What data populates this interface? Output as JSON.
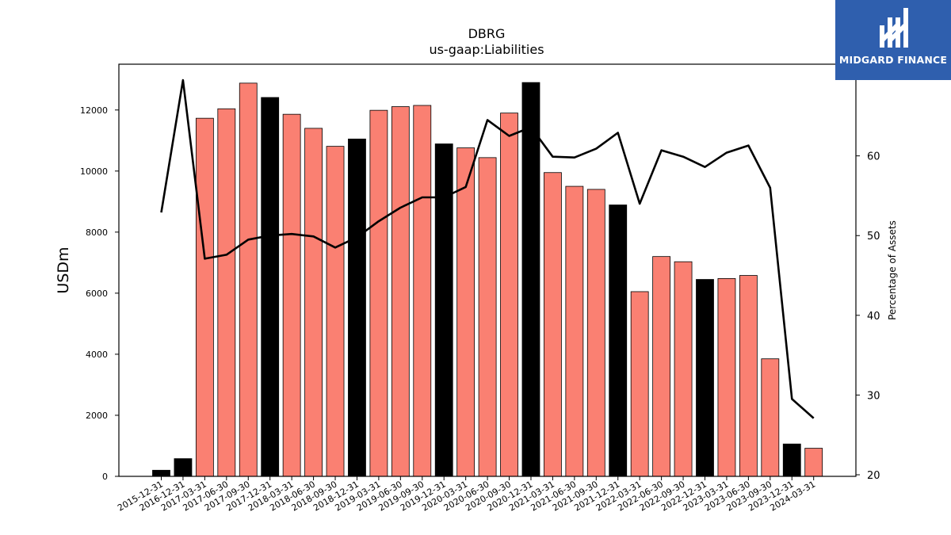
{
  "chart_data": {
    "type": "bar",
    "title": "DBRG",
    "subtitle": "us-gaap:Liabilities",
    "ylabel": "USDm",
    "y2label": "Percentage of Assets",
    "ylim": [
      0,
      13500
    ],
    "y2lim": [
      19.8,
      71.5
    ],
    "yticks": [
      0,
      2000,
      4000,
      6000,
      8000,
      10000,
      12000
    ],
    "y2ticks": [
      20,
      30,
      40,
      50,
      60
    ],
    "colors": {
      "annual": "#000000",
      "quarterly": "#fa8072",
      "line": "#000000"
    },
    "categories": [
      "2015-12-31",
      "2016-12-31",
      "2017-03-31",
      "2017-06-30",
      "2017-09-30",
      "2017-12-31",
      "2018-03-31",
      "2018-06-30",
      "2018-09-30",
      "2018-12-31",
      "2019-03-31",
      "2019-06-30",
      "2019-09-30",
      "2019-12-31",
      "2020-03-31",
      "2020-06-30",
      "2020-09-30",
      "2020-12-31",
      "2021-03-31",
      "2021-06-30",
      "2021-09-30",
      "2021-12-31",
      "2022-03-31",
      "2022-06-30",
      "2022-09-30",
      "2022-12-31",
      "2023-03-31",
      "2023-06-30",
      "2023-09-30",
      "2023-12-31",
      "2024-03-31"
    ],
    "values": [
      200,
      580,
      11730,
      12040,
      12880,
      12410,
      11860,
      11400,
      10810,
      11050,
      11990,
      12110,
      12150,
      10890,
      10760,
      10440,
      11900,
      12900,
      9950,
      9500,
      9400,
      8890,
      6050,
      7200,
      7030,
      6450,
      6480,
      6580,
      3850,
      1060,
      920
    ],
    "annual": [
      true,
      true,
      false,
      false,
      false,
      true,
      false,
      false,
      false,
      true,
      false,
      false,
      false,
      true,
      false,
      false,
      false,
      true,
      false,
      false,
      false,
      true,
      false,
      false,
      false,
      true,
      false,
      false,
      false,
      true,
      false
    ],
    "series": [
      {
        "values": [
          52.9,
          69.5,
          47.1,
          47.6,
          49.5,
          50.0,
          50.2,
          49.9,
          48.5,
          49.8,
          51.8,
          53.5,
          54.8,
          54.8,
          56.1,
          64.5,
          62.5,
          63.6,
          59.9,
          59.8,
          60.9,
          62.9,
          54.0,
          60.7,
          59.9,
          58.6,
          60.4,
          61.3,
          56.0,
          29.5,
          27.1
        ]
      }
    ]
  },
  "logo": {
    "text": "MIDGARD FINANCE",
    "background": "#2f5fae"
  }
}
